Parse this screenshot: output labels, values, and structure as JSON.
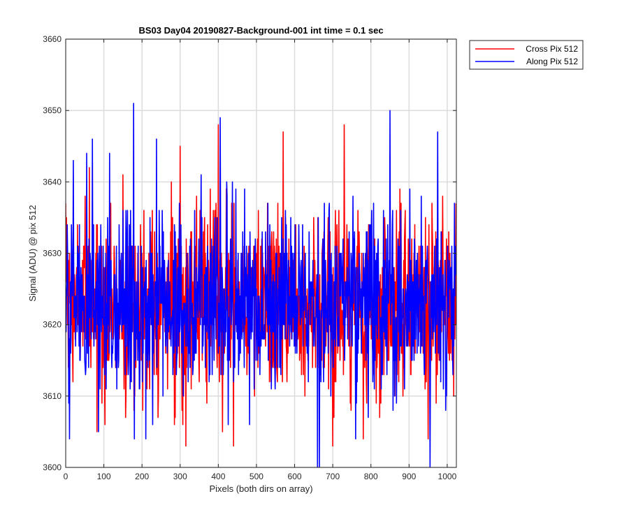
{
  "chart_data": {
    "type": "line",
    "title": "BS03 Day04 20190827-Background-001 int time = 0.1 sec",
    "xlabel": "Pixels (both dirs on array)",
    "ylabel": "Signal (ADU) @ pix 512",
    "xlim": [
      0,
      1024
    ],
    "ylim": [
      3600,
      3660
    ],
    "xticks": [
      0,
      100,
      200,
      300,
      400,
      500,
      600,
      700,
      800,
      900,
      1000
    ],
    "yticks": [
      3600,
      3610,
      3620,
      3630,
      3640,
      3650,
      3660
    ],
    "grid": true,
    "legend_position": "top-right outside",
    "noise_description": "Both series fluctuate randomly around ~3623 ADU for all 1024 pixels, mostly between ~3612 and ~3635.",
    "series": [
      {
        "name": "Cross Pix 512",
        "color": "#ff0000",
        "n_points": 1024,
        "mean_approx": 3623,
        "sample_points": [
          [
            0,
            3637
          ],
          [
            25,
            3618
          ],
          [
            50,
            3628
          ],
          [
            62,
            3642
          ],
          [
            82,
            3605
          ],
          [
            150,
            3641
          ],
          [
            160,
            3613
          ],
          [
            200,
            3630
          ],
          [
            250,
            3620
          ],
          [
            300,
            3645
          ],
          [
            350,
            3612
          ],
          [
            400,
            3648
          ],
          [
            410,
            3616
          ],
          [
            440,
            3603
          ],
          [
            500,
            3625
          ],
          [
            570,
            3647
          ],
          [
            600,
            3620
          ],
          [
            650,
            3635
          ],
          [
            700,
            3603
          ],
          [
            730,
            3648
          ],
          [
            780,
            3604
          ],
          [
            800,
            3622
          ],
          [
            850,
            3644
          ],
          [
            900,
            3618
          ],
          [
            950,
            3604
          ],
          [
            1000,
            3625
          ],
          [
            1023,
            3637
          ]
        ]
      },
      {
        "name": "Along Pix 512",
        "color": "#0000ff",
        "n_points": 1024,
        "mean_approx": 3623,
        "sample_points": [
          [
            0,
            3622
          ],
          [
            10,
            3604
          ],
          [
            20,
            3643
          ],
          [
            70,
            3646
          ],
          [
            100,
            3620
          ],
          [
            115,
            3644
          ],
          [
            160,
            3617
          ],
          [
            178,
            3651
          ],
          [
            180,
            3604
          ],
          [
            210,
            3604
          ],
          [
            300,
            3620
          ],
          [
            405,
            3649
          ],
          [
            440,
            3612
          ],
          [
            500,
            3625
          ],
          [
            660,
            3600
          ],
          [
            665,
            3600
          ],
          [
            700,
            3618
          ],
          [
            800,
            3620
          ],
          [
            850,
            3650
          ],
          [
            900,
            3620
          ],
          [
            955,
            3600
          ],
          [
            975,
            3647
          ],
          [
            1000,
            3620
          ],
          [
            1023,
            3627
          ]
        ]
      }
    ]
  }
}
